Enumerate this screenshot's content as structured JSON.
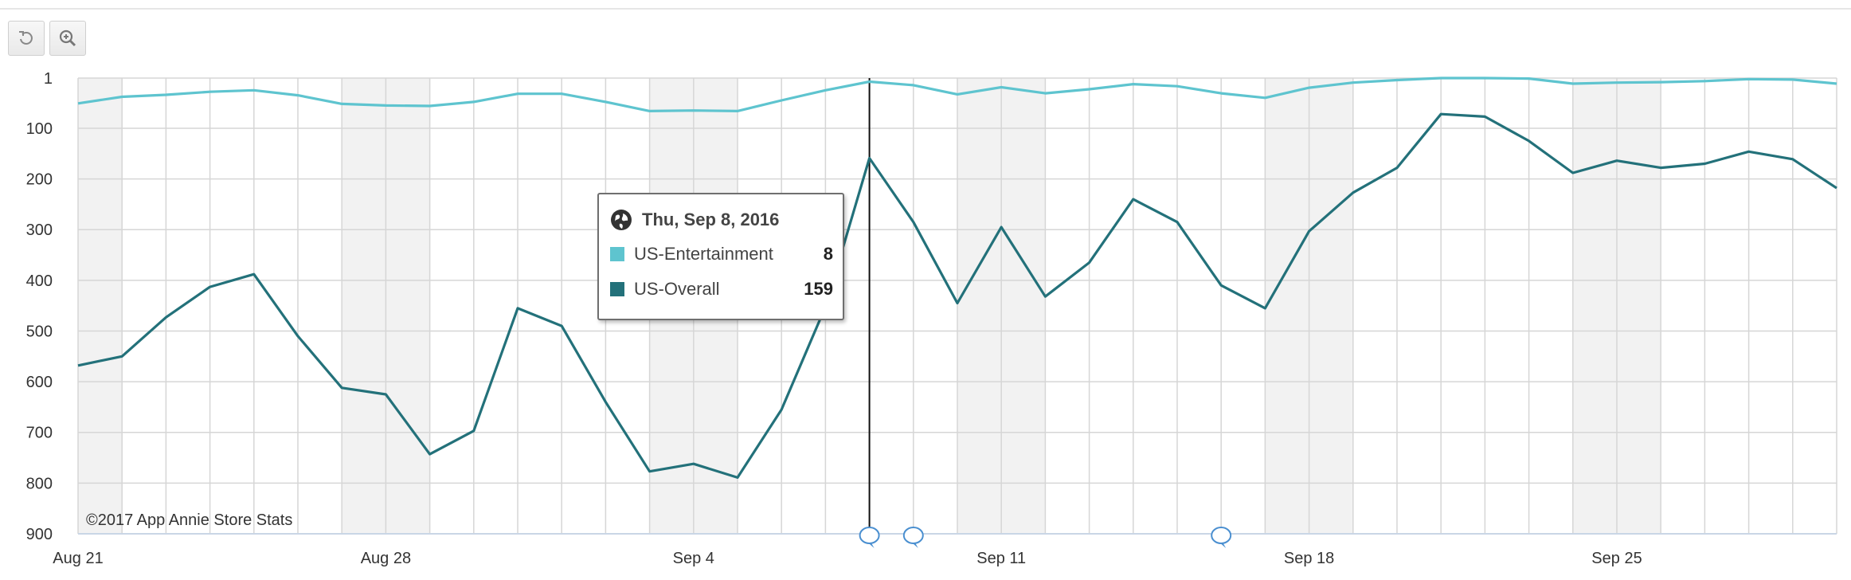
{
  "toolbar": {
    "buttons": [
      {
        "name": "reset-zoom",
        "icon": "undo-icon"
      },
      {
        "name": "zoom",
        "icon": "zoom-in-icon"
      }
    ]
  },
  "colors": {
    "entertainment": "#5ec4cf",
    "overall": "#23717a",
    "grid": "#d6d6d6",
    "weekend_band": "#f2f2f2"
  },
  "credit": "©2017 App Annie Store Stats",
  "tooltip": {
    "date": "Thu, Sep 8, 2016",
    "icon": "globe-icon",
    "rows": [
      {
        "name": "US-Entertainment",
        "value": "8",
        "color": "#5ec4cf"
      },
      {
        "name": "US-Overall",
        "value": "159",
        "color": "#23717a"
      }
    ]
  },
  "chart_data": {
    "type": "line",
    "x": [
      "2016-08-21",
      "2016-08-22",
      "2016-08-23",
      "2016-08-24",
      "2016-08-25",
      "2016-08-26",
      "2016-08-27",
      "2016-08-28",
      "2016-08-29",
      "2016-08-30",
      "2016-08-31",
      "2016-09-01",
      "2016-09-02",
      "2016-09-03",
      "2016-09-04",
      "2016-09-05",
      "2016-09-06",
      "2016-09-07",
      "2016-09-08",
      "2016-09-09",
      "2016-09-10",
      "2016-09-11",
      "2016-09-12",
      "2016-09-13",
      "2016-09-14",
      "2016-09-15",
      "2016-09-16",
      "2016-09-17",
      "2016-09-18",
      "2016-09-19",
      "2016-09-20",
      "2016-09-21",
      "2016-09-22",
      "2016-09-23",
      "2016-09-24",
      "2016-09-25",
      "2016-09-26",
      "2016-09-27",
      "2016-09-28",
      "2016-09-29",
      "2016-09-30"
    ],
    "x_tick_labels": [
      {
        "date": "2016-08-21",
        "label": "Aug 21"
      },
      {
        "date": "2016-08-28",
        "label": "Aug 28"
      },
      {
        "date": "2016-09-04",
        "label": "Sep 4"
      },
      {
        "date": "2016-09-11",
        "label": "Sep 11"
      },
      {
        "date": "2016-09-18",
        "label": "Sep 18"
      },
      {
        "date": "2016-09-25",
        "label": "Sep 25"
      }
    ],
    "y_ticks": [
      1,
      100,
      200,
      300,
      400,
      500,
      600,
      700,
      800,
      900
    ],
    "ylim": [
      1,
      900
    ],
    "y_reversed": true,
    "weekend_bands": true,
    "grid": true,
    "series": [
      {
        "name": "US-Entertainment",
        "values": [
          51,
          38,
          34,
          28,
          25,
          35,
          52,
          55,
          56,
          48,
          32,
          32,
          48,
          66,
          65,
          66,
          45,
          25,
          8,
          15,
          33,
          19,
          31,
          23,
          13,
          17,
          31,
          40,
          20,
          10,
          5,
          1,
          1,
          2,
          12,
          10,
          9,
          7,
          3,
          4,
          12
        ]
      },
      {
        "name": "US-Overall",
        "values": [
          568,
          550,
          473,
          413,
          388,
          510,
          612,
          625,
          743,
          697,
          455,
          490,
          640,
          777,
          762,
          789,
          655,
          452,
          159,
          285,
          445,
          295,
          432,
          365,
          240,
          285,
          410,
          455,
          303,
          227,
          178,
          72,
          77,
          125,
          188,
          164,
          178,
          170,
          146,
          161,
          218
        ]
      }
    ],
    "annotation_markers": [
      "2016-09-08",
      "2016-09-09",
      "2016-09-16"
    ],
    "crosshair": "2016-09-08"
  }
}
